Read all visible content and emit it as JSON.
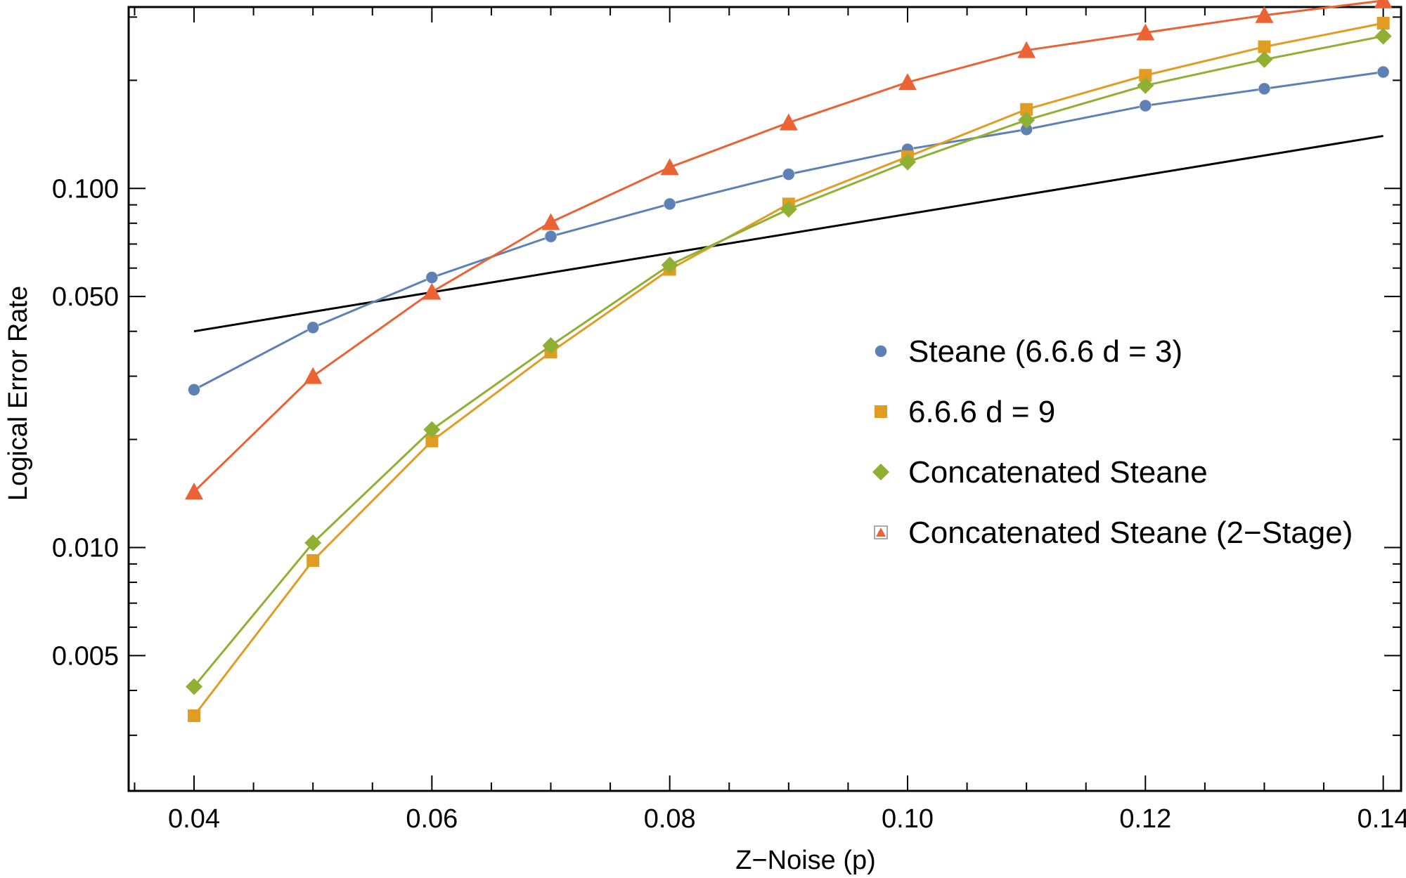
{
  "chart_data": {
    "type": "line",
    "title": "",
    "xlabel": "Z−Noise (p)",
    "ylabel": "Logical Error Rate",
    "xscale": "linear",
    "yscale": "log",
    "xlim": [
      0.0345,
      0.1415
    ],
    "ylim": [
      0.0021,
      0.32
    ],
    "x_ticks": [
      {
        "value": 0.04,
        "label": "0.04"
      },
      {
        "value": 0.06,
        "label": "0.06"
      },
      {
        "value": 0.08,
        "label": "0.08"
      },
      {
        "value": 0.1,
        "label": "0.10"
      },
      {
        "value": 0.12,
        "label": "0.12"
      },
      {
        "value": 0.14,
        "label": "0.14"
      }
    ],
    "y_ticks": [
      {
        "value": 0.005,
        "label": "0.005"
      },
      {
        "value": 0.01,
        "label": "0.010"
      },
      {
        "value": 0.05,
        "label": "0.050"
      },
      {
        "value": 0.1,
        "label": "0.100"
      }
    ],
    "series": [
      {
        "name": "Steane (6.6.6 d = 3)",
        "color": "#5e81b5",
        "marker": "circle",
        "x": [
          0.04,
          0.05,
          0.06,
          0.07,
          0.08,
          0.09,
          0.1,
          0.11,
          0.12,
          0.13,
          0.14
        ],
        "values": [
          0.0275,
          0.041,
          0.0565,
          0.0735,
          0.0905,
          0.1095,
          0.1285,
          0.146,
          0.17,
          0.1895,
          0.211
        ]
      },
      {
        "name": "6.6.6 d = 9",
        "color": "#e19c24",
        "marker": "square",
        "x": [
          0.04,
          0.05,
          0.06,
          0.07,
          0.08,
          0.09,
          0.1,
          0.11,
          0.12,
          0.13,
          0.14
        ],
        "values": [
          0.0034,
          0.0092,
          0.0198,
          0.035,
          0.0595,
          0.0905,
          0.1225,
          0.166,
          0.2065,
          0.248,
          0.2885
        ]
      },
      {
        "name": "Concatenated Steane",
        "color": "#8fb032",
        "marker": "diamond",
        "x": [
          0.04,
          0.05,
          0.06,
          0.07,
          0.08,
          0.09,
          0.1,
          0.11,
          0.12,
          0.13,
          0.14
        ],
        "values": [
          0.0041,
          0.0103,
          0.0213,
          0.0365,
          0.0612,
          0.0875,
          0.1185,
          0.155,
          0.1935,
          0.2285,
          0.2655
        ]
      },
      {
        "name": "Concatenated Steane (2−Stage)",
        "color": "#eb6235",
        "marker": "triangle",
        "x": [
          0.04,
          0.05,
          0.06,
          0.07,
          0.08,
          0.09,
          0.1,
          0.11,
          0.12,
          0.13,
          0.14
        ],
        "values": [
          0.0143,
          0.03,
          0.0515,
          0.0805,
          0.1145,
          0.1525,
          0.1975,
          0.2425,
          0.2715,
          0.3035,
          0.3335
        ]
      }
    ],
    "reference_line": {
      "color": "#000000",
      "x": [
        0.04,
        0.14
      ],
      "values": [
        0.04,
        0.14
      ]
    },
    "legend_position": "center-right"
  }
}
